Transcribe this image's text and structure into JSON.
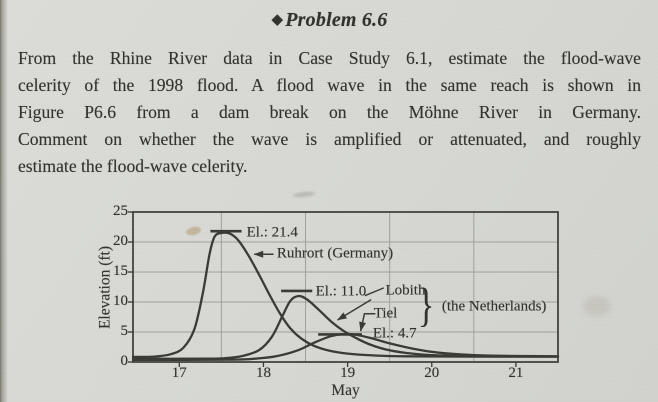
{
  "page": {
    "title": {
      "icon": "◆",
      "text": "Problem 6.6"
    },
    "paragraph_lines": [
      "From the Rhine River data in Case Study 6.1, estimate the flood-wave",
      "celerity of the 1998 flood. A flood wave in the same reach is shown in",
      "Figure P6.6 from a dam break on the Möhne River in Germany.",
      "Comment on whether the wave is amplified or attenuated, and roughly",
      "estimate the flood-wave celerity."
    ]
  },
  "colors": {
    "paper": "#d7d8d3",
    "ink": "#3a3a35",
    "grid": "#a0a19c"
  },
  "chart_data": {
    "type": "line",
    "xlabel": "May",
    "ylabel": "Elevation (ft)",
    "xlim": [
      16.45,
      21.5
    ],
    "ylim": [
      0,
      25
    ],
    "x_ticks": [
      17,
      18,
      19,
      20,
      21
    ],
    "y_ticks": [
      0,
      5,
      10,
      15,
      20,
      25
    ],
    "grid_x": [
      17.5,
      18.5,
      19.5,
      20.5
    ],
    "grid_y": [
      5,
      10,
      15,
      20
    ],
    "series": [
      {
        "name": "Ruhrort (Germany)",
        "country": "Germany",
        "peak_elevation_ft": 21.4,
        "peak_day_may": 17.5,
        "points": [
          [
            16.45,
            0.85
          ],
          [
            16.7,
            0.9
          ],
          [
            16.9,
            1.3
          ],
          [
            17.05,
            2.4
          ],
          [
            17.18,
            5.5
          ],
          [
            17.28,
            11.5
          ],
          [
            17.36,
            18.0
          ],
          [
            17.42,
            20.9
          ],
          [
            17.5,
            21.5
          ],
          [
            17.6,
            21.4
          ],
          [
            17.7,
            20.3
          ],
          [
            17.82,
            17.8
          ],
          [
            17.95,
            14.5
          ],
          [
            18.08,
            11.0
          ],
          [
            18.2,
            8.0
          ],
          [
            18.32,
            5.6
          ],
          [
            18.45,
            3.9
          ],
          [
            18.6,
            2.7
          ],
          [
            18.78,
            1.9
          ],
          [
            19.0,
            1.4
          ],
          [
            19.3,
            1.1
          ],
          [
            19.7,
            0.95
          ],
          [
            20.5,
            0.9
          ],
          [
            21.5,
            0.9
          ]
        ]
      },
      {
        "name": "Lobith",
        "country": "the Netherlands",
        "peak_elevation_ft": 11.0,
        "peak_day_may": 18.4,
        "points": [
          [
            16.45,
            0.55
          ],
          [
            17.3,
            0.55
          ],
          [
            17.55,
            0.65
          ],
          [
            17.75,
            1.0
          ],
          [
            17.95,
            2.0
          ],
          [
            18.1,
            4.2
          ],
          [
            18.22,
            7.5
          ],
          [
            18.32,
            10.2
          ],
          [
            18.42,
            11.0
          ],
          [
            18.52,
            10.4
          ],
          [
            18.65,
            8.8
          ],
          [
            18.8,
            6.8
          ],
          [
            18.95,
            5.2
          ],
          [
            19.1,
            4.0
          ],
          [
            19.25,
            3.0
          ],
          [
            19.45,
            2.1
          ],
          [
            19.7,
            1.5
          ],
          [
            20.0,
            1.15
          ],
          [
            20.5,
            0.95
          ],
          [
            21.5,
            0.9
          ]
        ]
      },
      {
        "name": "Tiel",
        "country": "the Netherlands",
        "peak_elevation_ft": 4.7,
        "peak_day_may": 19.0,
        "points": [
          [
            16.45,
            0.35
          ],
          [
            17.6,
            0.4
          ],
          [
            17.9,
            0.55
          ],
          [
            18.15,
            0.95
          ],
          [
            18.4,
            1.9
          ],
          [
            18.6,
            3.2
          ],
          [
            18.8,
            4.3
          ],
          [
            18.95,
            4.65
          ],
          [
            19.1,
            4.55
          ],
          [
            19.3,
            3.9
          ],
          [
            19.5,
            3.1
          ],
          [
            19.75,
            2.3
          ],
          [
            20.0,
            1.7
          ],
          [
            20.3,
            1.3
          ],
          [
            20.7,
            1.05
          ],
          [
            21.5,
            0.95
          ]
        ]
      }
    ],
    "peak_bars": [
      {
        "x1": 17.37,
        "x2": 17.74,
        "y": 21.8
      },
      {
        "x1": 18.21,
        "x2": 18.58,
        "y": 11.85
      },
      {
        "x1": 18.65,
        "x2": 19.17,
        "y": 4.6
      }
    ],
    "arrows": [
      {
        "points": [
          [
            18.12,
            17.95
          ],
          [
            17.89,
            17.95
          ]
        ]
      },
      {
        "points": [
          [
            19.28,
            10.4
          ],
          [
            18.88,
            7.0
          ]
        ]
      },
      {
        "points": [
          [
            19.33,
            8.05
          ],
          [
            19.2,
            8.05
          ],
          [
            19.155,
            5.15
          ]
        ]
      }
    ],
    "leader_lines": [
      {
        "points": [
          [
            19.205,
            11.05
          ],
          [
            19.43,
            12.35
          ]
        ]
      }
    ],
    "annotations": [
      {
        "name": "ruhrort-peak-elevation-label",
        "label": "El.: 21.4",
        "x": 17.8,
        "y": 21.55
      },
      {
        "name": "ruhrort-station-label",
        "label": "Ruhrort (Germany)",
        "x": 18.16,
        "y": 17.95
      },
      {
        "name": "lobith-peak-elevation-label",
        "label": "El.: 11.0",
        "x": 18.62,
        "y": 11.7
      },
      {
        "name": "lobith-station-label",
        "label": "Lobith",
        "x": 19.45,
        "y": 11.85
      },
      {
        "name": "tiel-station-label",
        "label": "Tiel",
        "x": 19.31,
        "y": 8.05
      },
      {
        "name": "tiel-peak-elevation-label",
        "label": "El.: 4.7",
        "x": 19.3,
        "y": 4.75
      },
      {
        "name": "netherlands-group-label",
        "label": "(the Netherlands)",
        "x": 20.12,
        "y": 9.2
      },
      {
        "name": "netherlands-brace",
        "label": "}",
        "x": 19.93,
        "y": 9.55,
        "brace": true
      }
    ]
  }
}
